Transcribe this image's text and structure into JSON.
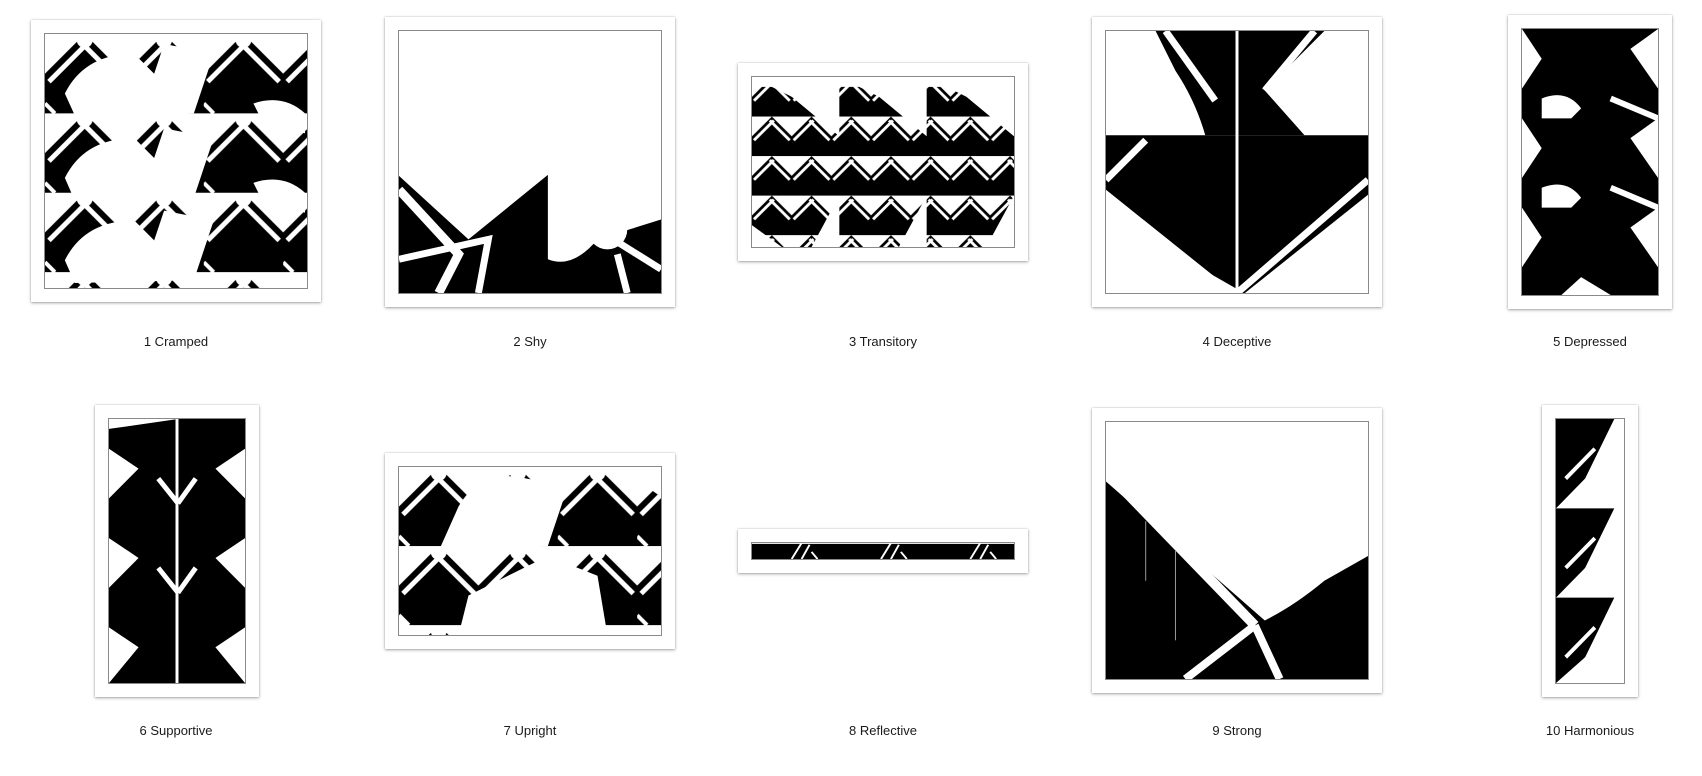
{
  "gallery": {
    "items": [
      {
        "caption": "1 Cramped"
      },
      {
        "caption": "2 Shy"
      },
      {
        "caption": "3 Transitory"
      },
      {
        "caption": "4 Deceptive"
      },
      {
        "caption": "5 Depressed"
      },
      {
        "caption": "6 Supportive"
      },
      {
        "caption": "7 Upright"
      },
      {
        "caption": "8 Reflective"
      },
      {
        "caption": "9 Strong"
      },
      {
        "caption": "10 Harmonious"
      }
    ]
  },
  "colors": {
    "ink": "#000000",
    "paper": "#ffffff",
    "frame": "#8a8a8a"
  }
}
